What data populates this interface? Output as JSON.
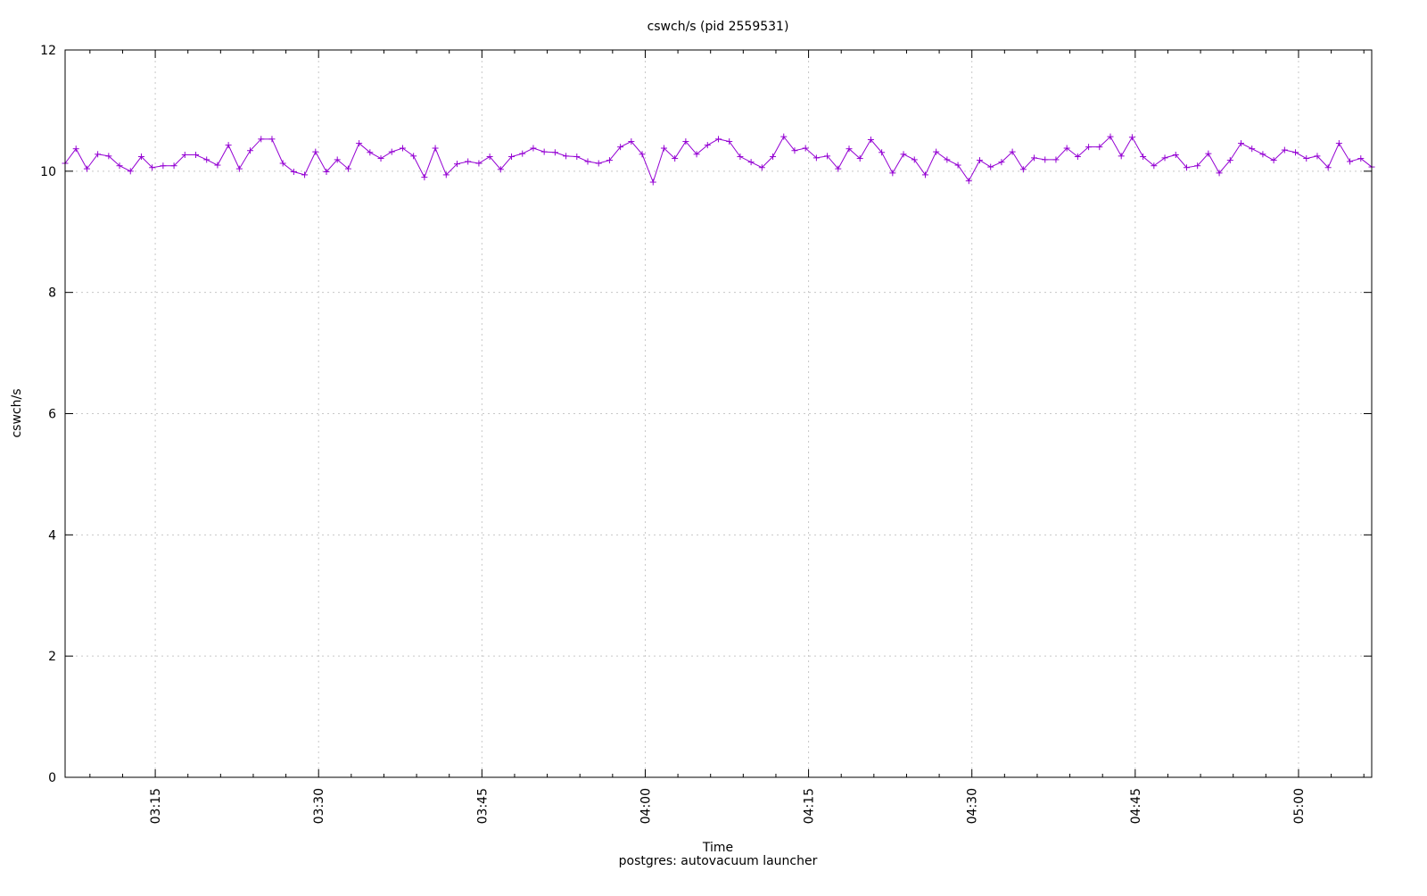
{
  "chart_data": {
    "type": "line",
    "title": "cswch/s (pid 2559531)",
    "xlabel": "Time",
    "subtitle": "postgres: autovacuum launcher",
    "ylabel": "cswch/s",
    "x_unit": "minutes since 03:00",
    "xlim": [
      6.72,
      126.72
    ],
    "ylim": [
      0,
      12
    ],
    "yticks": [
      0,
      2,
      4,
      6,
      8,
      10,
      12
    ],
    "xticks": [
      {
        "value": 15,
        "label": "03:15"
      },
      {
        "value": 30,
        "label": "03:30"
      },
      {
        "value": 45,
        "label": "03:45"
      },
      {
        "value": 60,
        "label": "04:00"
      },
      {
        "value": 75,
        "label": "04:15"
      },
      {
        "value": 90,
        "label": "04:30"
      },
      {
        "value": 105,
        "label": "04:45"
      },
      {
        "value": 120,
        "label": "05:00"
      }
    ],
    "grid": true,
    "series": [
      {
        "name": "cswch/s",
        "color": "#9400d3",
        "marker": "plus",
        "x_start": 6.72,
        "x_step": 1,
        "values": [
          10.13,
          10.37,
          10.04,
          10.28,
          10.25,
          10.09,
          10.0,
          10.24,
          10.06,
          10.09,
          10.09,
          10.27,
          10.27,
          10.19,
          10.1,
          10.43,
          10.04,
          10.34,
          10.53,
          10.53,
          10.13,
          9.99,
          9.94,
          10.32,
          9.99,
          10.19,
          10.04,
          10.46,
          10.31,
          10.21,
          10.32,
          10.38,
          10.25,
          9.9,
          10.38,
          9.94,
          10.12,
          10.16,
          10.13,
          10.24,
          10.03,
          10.24,
          10.29,
          10.38,
          10.32,
          10.31,
          10.25,
          10.24,
          10.16,
          10.13,
          10.18,
          10.4,
          10.49,
          10.28,
          9.82,
          10.38,
          10.21,
          10.49,
          10.28,
          10.43,
          10.53,
          10.49,
          10.24,
          10.15,
          10.06,
          10.24,
          10.57,
          10.34,
          10.38,
          10.22,
          10.25,
          10.04,
          10.37,
          10.21,
          10.52,
          10.31,
          9.97,
          10.28,
          10.19,
          9.94,
          10.32,
          10.19,
          10.1,
          9.84,
          10.18,
          10.07,
          10.15,
          10.32,
          10.03,
          10.22,
          10.19,
          10.19,
          10.38,
          10.24,
          10.4,
          10.4,
          10.57,
          10.25,
          10.56,
          10.24,
          10.09,
          10.22,
          10.27,
          10.06,
          10.09,
          10.29,
          9.97,
          10.18,
          10.46,
          10.37,
          10.28,
          10.18,
          10.35,
          10.31,
          10.21,
          10.25,
          10.06,
          10.46,
          10.16,
          10.21,
          10.07
        ]
      }
    ]
  }
}
